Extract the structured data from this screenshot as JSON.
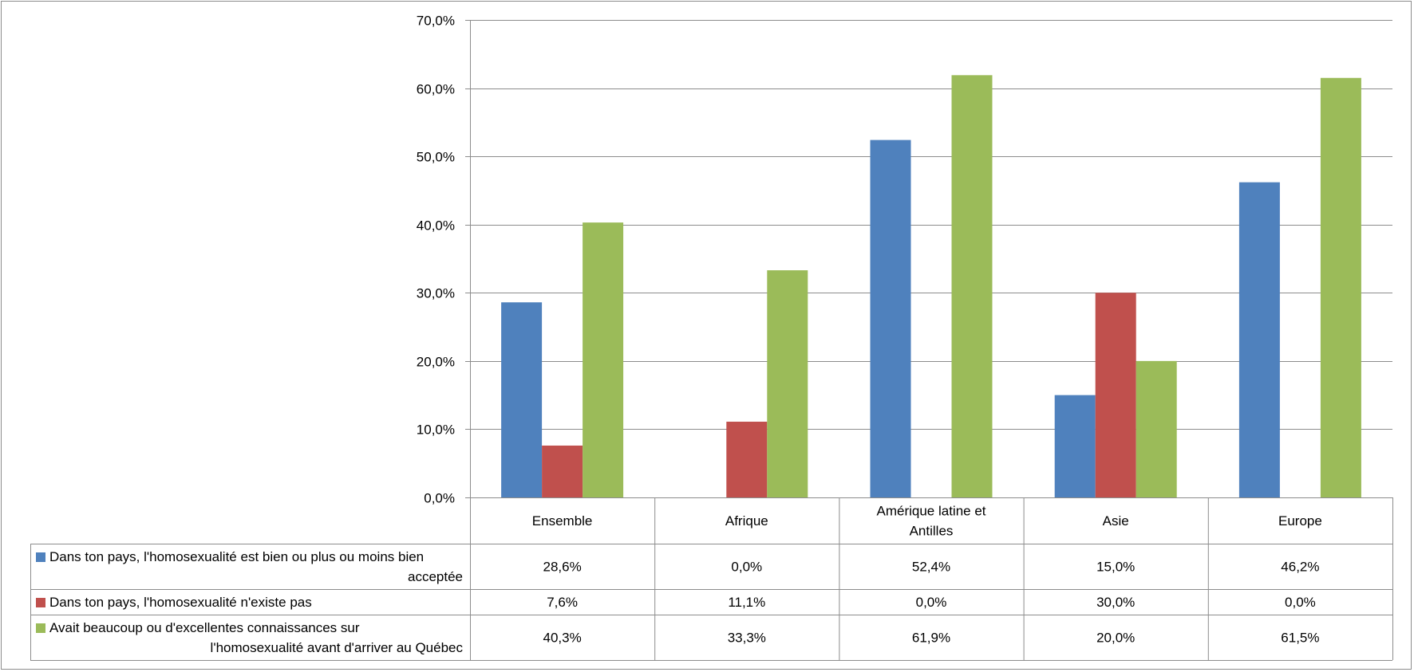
{
  "chart_data": {
    "type": "bar",
    "categories": [
      "Ensemble",
      "Afrique",
      "Amérique latine et Antilles",
      "Asie",
      "Europe"
    ],
    "category_lines": [
      [
        "Ensemble"
      ],
      [
        "Afrique"
      ],
      [
        "Amérique latine et",
        "Antilles"
      ],
      [
        "Asie"
      ],
      [
        "Europe"
      ]
    ],
    "series": [
      {
        "name": "Dans ton pays, l'homosexualité est bien ou plus ou moins bien acceptée",
        "name_lines": [
          "Dans ton pays, l'homosexualité est bien ou plus ou moins bien",
          "acceptée"
        ],
        "color": "#4f81bd",
        "values": [
          28.6,
          0.0,
          52.4,
          15.0,
          46.2
        ],
        "labels": [
          "28,6%",
          "0,0%",
          "52,4%",
          "15,0%",
          "46,2%"
        ]
      },
      {
        "name": "Dans ton pays, l'homosexualité n'existe pas",
        "name_lines": [
          "Dans ton pays, l'homosexualité n'existe pas"
        ],
        "color": "#c0504d",
        "values": [
          7.6,
          11.1,
          0.0,
          30.0,
          0.0
        ],
        "labels": [
          "7,6%",
          "11,1%",
          "0,0%",
          "30,0%",
          "0,0%"
        ]
      },
      {
        "name": "Avait beaucoup ou d'excellentes connaissances sur l'homosexualité avant d'arriver au Québec",
        "name_lines": [
          "Avait beaucoup ou d'excellentes connaissances sur",
          "l'homosexualité avant d'arriver au Québec"
        ],
        "color": "#9bbb59",
        "values": [
          40.3,
          33.3,
          61.9,
          20.0,
          61.5
        ],
        "labels": [
          "40,3%",
          "33,3%",
          "61,9%",
          "20,0%",
          "61,5%"
        ]
      }
    ],
    "ylim": [
      0,
      70
    ],
    "yticks": [
      0,
      10,
      20,
      30,
      40,
      50,
      60,
      70
    ],
    "ytick_labels": [
      "0,0%",
      "10,0%",
      "20,0%",
      "30,0%",
      "40,0%",
      "50,0%",
      "60,0%",
      "70,0%"
    ],
    "grid": true,
    "legend": "data-table",
    "title": "",
    "xlabel": "",
    "ylabel": ""
  }
}
